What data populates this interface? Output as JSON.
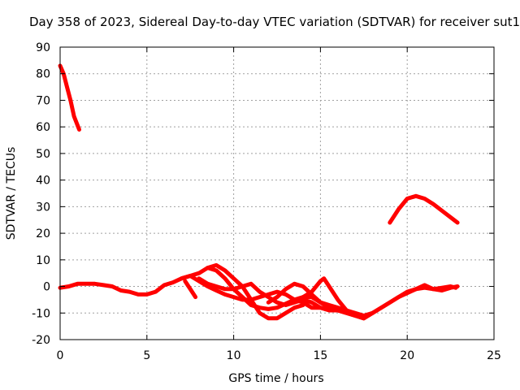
{
  "chart_data": {
    "type": "scatter",
    "title": "Day 358 of 2023, Sidereal Day-to-day VTEC variation (SDTVAR) for receiver sut1",
    "xlabel": "GPS time / hours",
    "ylabel": "SDTVAR / TECUs",
    "xlim": [
      0,
      25
    ],
    "ylim": [
      -20,
      90
    ],
    "x_ticks": [
      0,
      5,
      10,
      15,
      20,
      25
    ],
    "y_ticks": [
      -20,
      -10,
      0,
      10,
      20,
      30,
      40,
      50,
      60,
      70,
      80,
      90
    ],
    "grid": true,
    "legend": "none",
    "color": "#ff0000",
    "series": [
      {
        "name": "track-1",
        "points": [
          [
            0.0,
            83
          ],
          [
            0.2,
            80
          ],
          [
            0.4,
            75
          ],
          [
            0.6,
            70
          ],
          [
            0.8,
            64
          ],
          [
            1.1,
            59
          ]
        ]
      },
      {
        "name": "track-2",
        "points": [
          [
            0.0,
            -0.5
          ],
          [
            0.5,
            0
          ],
          [
            1.0,
            1
          ],
          [
            1.5,
            1
          ],
          [
            2.0,
            1
          ],
          [
            2.5,
            0.5
          ],
          [
            3.0,
            0
          ],
          [
            3.5,
            -1.5
          ],
          [
            4.0,
            -2
          ],
          [
            4.5,
            -3
          ],
          [
            5.0,
            -3
          ],
          [
            5.5,
            -2
          ],
          [
            6.0,
            0.5
          ],
          [
            6.5,
            1.5
          ],
          [
            7.0,
            3
          ],
          [
            7.5,
            4
          ],
          [
            8.0,
            5
          ],
          [
            8.5,
            7
          ],
          [
            9.0,
            8
          ],
          [
            9.5,
            6
          ],
          [
            10.0,
            3
          ],
          [
            10.5,
            0
          ],
          [
            11.0,
            -5
          ],
          [
            11.5,
            -10
          ],
          [
            12.0,
            -12
          ],
          [
            12.5,
            -12
          ],
          [
            13.0,
            -10
          ],
          [
            13.5,
            -8
          ],
          [
            14.0,
            -7
          ]
        ]
      },
      {
        "name": "track-3",
        "points": [
          [
            7.0,
            3
          ],
          [
            7.5,
            4
          ],
          [
            8.0,
            2
          ],
          [
            8.5,
            0
          ],
          [
            9.0,
            -1.5
          ],
          [
            9.5,
            -3
          ],
          [
            10.0,
            -4
          ],
          [
            10.5,
            -5
          ],
          [
            11.0,
            -5
          ],
          [
            11.5,
            -4
          ],
          [
            12.0,
            -3
          ],
          [
            12.5,
            -2
          ],
          [
            13.0,
            -3
          ],
          [
            13.5,
            -5
          ],
          [
            14.0,
            -6
          ],
          [
            14.5,
            -8
          ],
          [
            15.0,
            -8
          ],
          [
            15.5,
            -9
          ],
          [
            16.0,
            -9
          ],
          [
            16.5,
            -10
          ],
          [
            17.0,
            -11
          ],
          [
            17.5,
            -12
          ]
        ]
      },
      {
        "name": "track-4",
        "points": [
          [
            7.2,
            2
          ],
          [
            7.5,
            -1
          ],
          [
            7.8,
            -4
          ]
        ]
      },
      {
        "name": "track-5",
        "points": [
          [
            8.0,
            3
          ],
          [
            8.5,
            1
          ],
          [
            9.0,
            0
          ],
          [
            9.5,
            -1
          ],
          [
            10.0,
            -1
          ],
          [
            10.5,
            0
          ],
          [
            11.0,
            1
          ],
          [
            11.5,
            -2
          ],
          [
            12.0,
            -4
          ],
          [
            12.5,
            -6
          ],
          [
            13.0,
            -7
          ],
          [
            13.5,
            -6
          ],
          [
            14.0,
            -5
          ],
          [
            14.5,
            -6
          ],
          [
            15.0,
            -8
          ]
        ]
      },
      {
        "name": "track-6",
        "points": [
          [
            8.5,
            7
          ],
          [
            9.0,
            6
          ],
          [
            9.5,
            3
          ],
          [
            10.0,
            -1
          ],
          [
            10.5,
            -4
          ],
          [
            11.0,
            -7
          ],
          [
            11.5,
            -8
          ],
          [
            12.0,
            -8.5
          ],
          [
            12.5,
            -8
          ],
          [
            13.0,
            -6.5
          ],
          [
            13.5,
            -5
          ],
          [
            14.0,
            -4
          ],
          [
            14.5,
            -4
          ],
          [
            15.0,
            -6
          ],
          [
            15.5,
            -7
          ],
          [
            16.0,
            -8
          ],
          [
            16.5,
            -9
          ],
          [
            17.0,
            -10
          ],
          [
            17.5,
            -11
          ]
        ]
      },
      {
        "name": "track-7",
        "points": [
          [
            12.0,
            -6
          ],
          [
            12.5,
            -4
          ],
          [
            13.0,
            -1
          ],
          [
            13.5,
            1
          ],
          [
            14.0,
            0
          ],
          [
            14.5,
            -3
          ],
          [
            15.0,
            -6
          ],
          [
            15.5,
            -8
          ],
          [
            16.0,
            -9
          ],
          [
            16.5,
            -10
          ],
          [
            17.0,
            -11
          ],
          [
            17.5,
            -12
          ],
          [
            18.0,
            -10
          ]
        ]
      },
      {
        "name": "track-8",
        "points": [
          [
            14.0,
            -4
          ],
          [
            14.5,
            -2
          ],
          [
            15.0,
            2
          ],
          [
            15.2,
            3
          ],
          [
            15.5,
            0
          ],
          [
            16.0,
            -5
          ],
          [
            16.5,
            -9
          ],
          [
            17.0,
            -11
          ],
          [
            17.5,
            -11
          ],
          [
            18.0,
            -10
          ],
          [
            18.5,
            -8
          ],
          [
            19.0,
            -6
          ],
          [
            19.5,
            -4
          ],
          [
            20.0,
            -2.5
          ],
          [
            20.5,
            -1
          ],
          [
            21.0,
            -0.5
          ],
          [
            21.5,
            -1
          ],
          [
            22.0,
            -0.5
          ],
          [
            22.5,
            0
          ],
          [
            22.8,
            -0.5
          ]
        ]
      },
      {
        "name": "track-9",
        "points": [
          [
            19.0,
            24
          ],
          [
            19.5,
            29
          ],
          [
            20.0,
            33
          ],
          [
            20.5,
            34
          ],
          [
            21.0,
            33
          ],
          [
            21.5,
            31
          ],
          [
            22.0,
            28.5
          ],
          [
            22.5,
            26
          ],
          [
            22.9,
            24
          ]
        ]
      },
      {
        "name": "track-10",
        "points": [
          [
            17.5,
            -12
          ],
          [
            18.0,
            -10
          ],
          [
            18.5,
            -8
          ],
          [
            19.0,
            -6
          ],
          [
            19.5,
            -4
          ],
          [
            20.0,
            -2
          ],
          [
            20.5,
            -1
          ],
          [
            21.0,
            0.5
          ],
          [
            21.5,
            -1
          ],
          [
            22.0,
            -1.5
          ],
          [
            22.5,
            -0.5
          ],
          [
            22.9,
            0
          ]
        ]
      }
    ]
  }
}
